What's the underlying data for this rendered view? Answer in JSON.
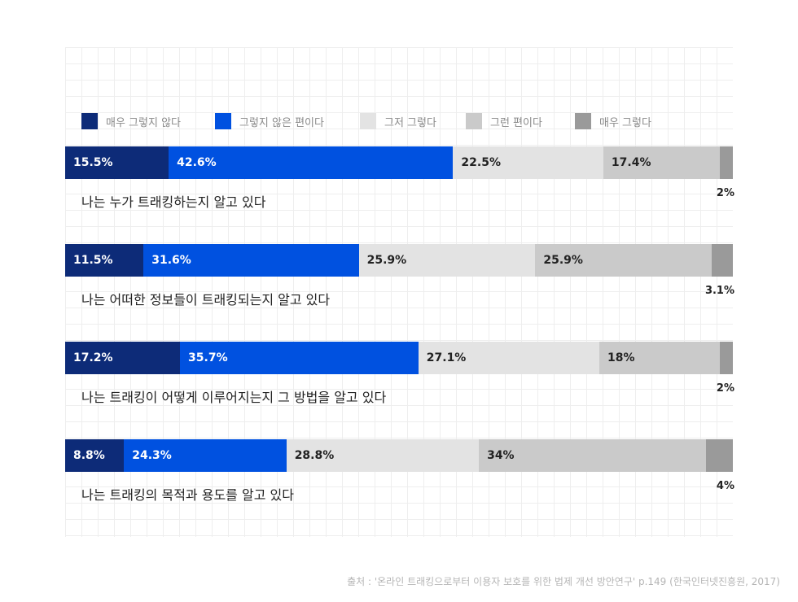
{
  "chart_data": {
    "type": "bar",
    "orientation": "horizontal",
    "stacked": true,
    "grid": true,
    "legend_position": "top-left",
    "series": [
      {
        "name": "매우 그렇지 않다",
        "color": "#0d2b78",
        "values": [
          15.5,
          11.5,
          17.2,
          8.8
        ],
        "labels": [
          "15.5%",
          "11.5%",
          "17.2%",
          "8.8%"
        ]
      },
      {
        "name": "그렇지 않은 편이다",
        "color": "#0051e0",
        "values": [
          42.6,
          31.6,
          35.7,
          24.3
        ],
        "labels": [
          "42.6%",
          "31.6%",
          "35.7%",
          "24.3%"
        ]
      },
      {
        "name": "그저 그렇다",
        "color": "#e3e3e3",
        "values": [
          22.5,
          25.9,
          27.1,
          28.8
        ],
        "labels": [
          "22.5%",
          "25.9%",
          "27.1%",
          "28.8%"
        ]
      },
      {
        "name": "그런 편이다",
        "color": "#cacaca",
        "values": [
          17.4,
          25.9,
          18,
          34
        ],
        "labels": [
          "17.4%",
          "25.9%",
          "18%",
          "34%"
        ]
      },
      {
        "name": "매우 그렇다",
        "color": "#9a9a9a",
        "values": [
          2,
          3.1,
          2,
          4
        ],
        "labels": [
          "2%",
          "3.1%",
          "2%",
          "4%"
        ]
      }
    ],
    "categories": [
      "나는 누가 트래킹하는지 알고 있다",
      "나는 어떠한 정보들이 트래킹되는지 알고 있다",
      "나는 트래킹이 어떻게 이루어지는지 그 방법을 알고 있다",
      "나는 트래킹의 목적과 용도를 알고 있다"
    ]
  },
  "source": "출처 : '온라인 트래킹으로부터 이용자 보호를 위한 법제 개선 방안연구' p.149 (한국인터넷진흥원, 2017)"
}
